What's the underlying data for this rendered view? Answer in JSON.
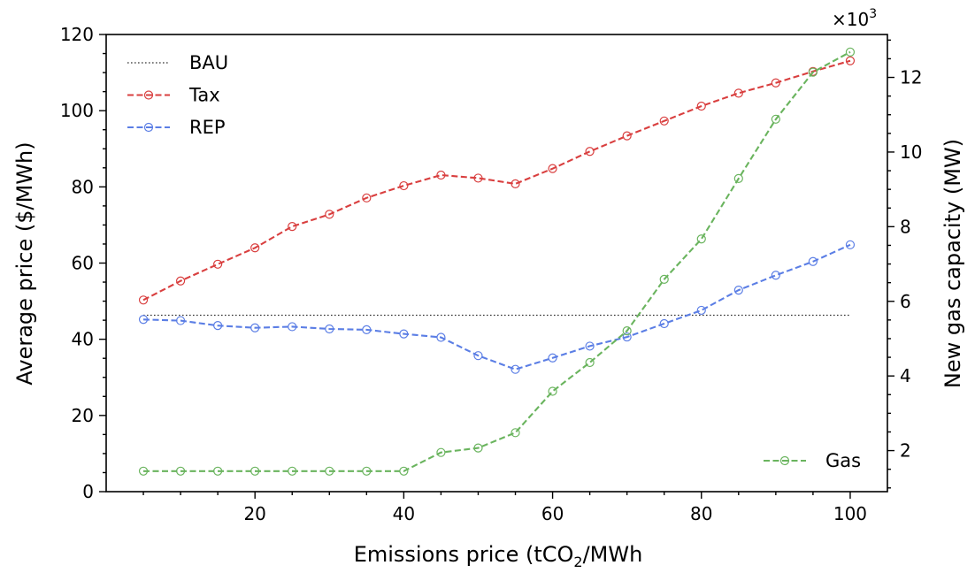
{
  "chart_data": {
    "type": "line",
    "xlabel": "Emissions price (tCO",
    "xlabel_sub": "2",
    "xlabel_tail": "/MWh",
    "ylabel_left": "Average price ($/MWh)",
    "ylabel_right": "New gas capacity (MW)",
    "right_multiplier": "×10",
    "right_multiplier_exp": "3",
    "xlim": [
      0,
      105
    ],
    "ylim_left": [
      0,
      120
    ],
    "ylim_right": [
      0.9,
      13.15
    ],
    "x_ticks": [
      "20",
      "40",
      "60",
      "80",
      "100"
    ],
    "y_ticks_left": [
      "0",
      "20",
      "40",
      "60",
      "80",
      "100",
      "120"
    ],
    "y_ticks_right": [
      "2",
      "4",
      "6",
      "8",
      "10",
      "12"
    ],
    "x": [
      5,
      10,
      15,
      20,
      25,
      30,
      35,
      40,
      45,
      50,
      55,
      60,
      65,
      70,
      75,
      80,
      85,
      90,
      95,
      100
    ],
    "series": [
      {
        "name": "BAU",
        "axis": "left",
        "color": "#333333",
        "style": "dotted",
        "values": [
          46.3,
          46.3,
          46.3,
          46.3,
          46.3,
          46.3,
          46.3,
          46.3,
          46.3,
          46.3,
          46.3,
          46.3,
          46.3,
          46.3,
          46.3,
          46.3,
          46.3,
          46.3,
          46.3,
          46.3
        ]
      },
      {
        "name": "Tax",
        "axis": "left",
        "color": "#d93f3f",
        "style": "dashed",
        "values": [
          50.3,
          55.3,
          59.7,
          64.0,
          69.6,
          72.8,
          77.1,
          80.3,
          83.1,
          82.3,
          80.8,
          84.8,
          89.3,
          93.4,
          97.3,
          101.2,
          104.6,
          107.3,
          110.3,
          113.1
        ]
      },
      {
        "name": "REP",
        "axis": "left",
        "color": "#5b7ee5",
        "style": "dashed",
        "values": [
          45.2,
          44.9,
          43.6,
          43.0,
          43.3,
          42.7,
          42.5,
          41.4,
          40.5,
          35.7,
          32.1,
          35.1,
          38.2,
          40.6,
          44.1,
          47.6,
          52.9,
          56.8,
          60.4,
          64.8
        ]
      },
      {
        "name": "Gas",
        "axis": "right",
        "color": "#6ab45e",
        "style": "dashed",
        "values": [
          1.45,
          1.45,
          1.45,
          1.45,
          1.45,
          1.45,
          1.45,
          1.45,
          1.95,
          2.07,
          2.48,
          3.59,
          4.36,
          5.21,
          6.59,
          7.67,
          9.29,
          10.88,
          12.14,
          12.68
        ]
      }
    ],
    "legend_left": [
      "BAU",
      "Tax",
      "REP"
    ],
    "legend_left_placement": "upper-left",
    "legend_right": [
      "Gas"
    ],
    "legend_right_placement": "lower-right",
    "grid": false
  }
}
